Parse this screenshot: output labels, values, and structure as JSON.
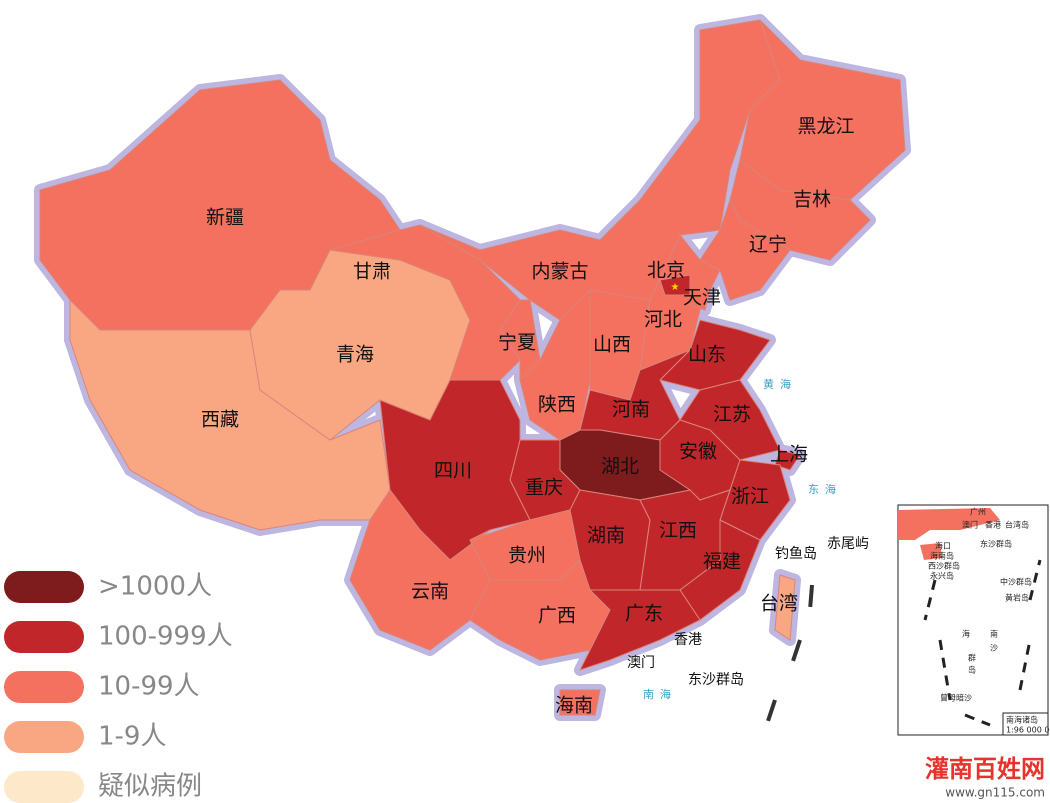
{
  "legend": [
    {
      "label": ">1000人",
      "color": "#7e1b1c"
    },
    {
      "label": "100-999人",
      "color": "#c1272a"
    },
    {
      "label": "10-99人",
      "color": "#f4705f"
    },
    {
      "label": "1-9人",
      "color": "#f9a783"
    },
    {
      "label": "疑似病例",
      "color": "#fde9c9"
    }
  ],
  "provinces": [
    {
      "name": "新疆",
      "level": 2
    },
    {
      "name": "西藏",
      "level": 3
    },
    {
      "name": "青海",
      "level": 3
    },
    {
      "name": "甘肃",
      "level": 2
    },
    {
      "name": "内蒙古",
      "level": 2
    },
    {
      "name": "黑龙江",
      "level": 2
    },
    {
      "name": "吉林",
      "level": 2
    },
    {
      "name": "辽宁",
      "level": 2
    },
    {
      "name": "宁夏",
      "level": 2
    },
    {
      "name": "陕西",
      "level": 2
    },
    {
      "name": "山西",
      "level": 2
    },
    {
      "name": "河北",
      "level": 2
    },
    {
      "name": "北京",
      "level": 1
    },
    {
      "name": "天津",
      "level": 2
    },
    {
      "name": "山东",
      "level": 1
    },
    {
      "name": "河南",
      "level": 1
    },
    {
      "name": "江苏",
      "level": 1
    },
    {
      "name": "安徽",
      "level": 1
    },
    {
      "name": "上海",
      "level": 1
    },
    {
      "name": "浙江",
      "level": 1
    },
    {
      "name": "湖北",
      "level": 0
    },
    {
      "name": "重庆",
      "level": 1
    },
    {
      "name": "四川",
      "level": 1
    },
    {
      "name": "贵州",
      "level": 2
    },
    {
      "name": "云南",
      "level": 2
    },
    {
      "name": "湖南",
      "level": 1
    },
    {
      "name": "江西",
      "level": 1
    },
    {
      "name": "福建",
      "level": 1
    },
    {
      "name": "广西",
      "level": 2
    },
    {
      "name": "广东",
      "level": 1
    },
    {
      "name": "海南",
      "level": 2
    },
    {
      "name": "台湾",
      "level": 3
    }
  ],
  "other_labels": [
    "香港",
    "澳门",
    "钓鱼岛",
    "赤尾屿",
    "东沙群岛"
  ],
  "sea_labels": [
    "黄海",
    "东海",
    "南海"
  ],
  "inset": {
    "title": "南海诸岛",
    "scale": "1:96 000 000",
    "labels": [
      "广州",
      "香港",
      "台湾岛",
      "澳门",
      "东沙群岛",
      "海口",
      "海南岛",
      "西沙群岛",
      "永兴岛",
      "中沙群岛",
      "黄岩岛",
      "南",
      "沙",
      "群",
      "岛",
      "海",
      "曾母暗沙"
    ]
  },
  "watermark": {
    "name": "灌南百姓网",
    "url": "www.gn115.com"
  }
}
